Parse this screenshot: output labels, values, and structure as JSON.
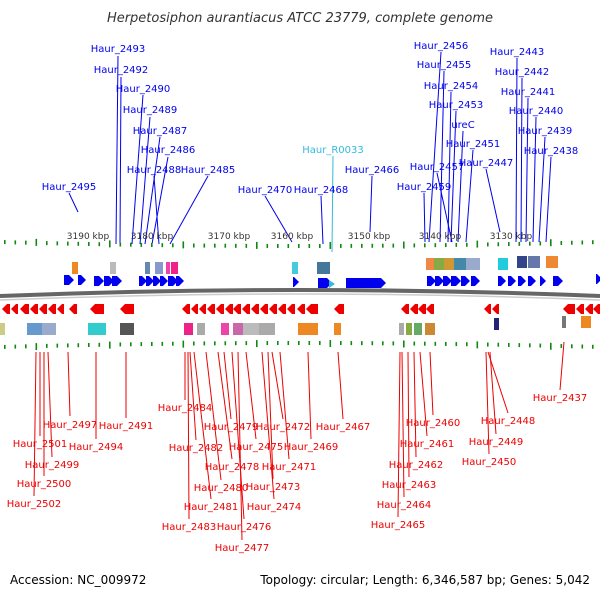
{
  "title": "Herpetosiphon aurantiacus ATCC 23779, complete genome",
  "footer": {
    "accession": "Accession: NC_009972",
    "stats": "Topology: circular; Length: 6,346,587 bp; Genes: 5,042"
  },
  "colors": {
    "forward_gene": "#0000ee",
    "reverse_gene": "#ee0000",
    "rna_gene": "#33bbdd",
    "tick": "#118811",
    "backbone": "#666666"
  },
  "scale": {
    "unit": "kbp",
    "labels": [
      "3190 kbp",
      "3180 kbp",
      "3170 kbp",
      "3160 kbp",
      "3150 kbp",
      "3140 kbp",
      "3130 kbp"
    ]
  },
  "top_labels": [
    "Haur_2493",
    "Haur_2492",
    "Haur_2490",
    "Haur_2489",
    "Haur_2487",
    "Haur_2486",
    "Haur_2488",
    "Haur_2485",
    "Haur_2495",
    "Haur_R0033",
    "Haur_2466",
    "Haur_2470",
    "Haur_2468",
    "Haur_2456",
    "Haur_2455",
    "Haur_2454",
    "Haur_2453",
    "ureC",
    "Haur_2451",
    "Haur_2457",
    "Haur_2459",
    "Haur_2443",
    "Haur_2442",
    "Haur_2441",
    "Haur_2440",
    "Haur_2439",
    "Haur_2438",
    "Haur_2447"
  ],
  "bottom_labels": [
    "Haur_2497",
    "Haur_2501",
    "Haur_2499",
    "Haur_2500",
    "Haur_2502",
    "Haur_2494",
    "Haur_2491",
    "Haur_2484",
    "Haur_2482",
    "Haur_2481",
    "Haur_2483",
    "Haur_2480",
    "Haur_2478",
    "Haur_2479",
    "Haur_2476",
    "Haur_2477",
    "Haur_2475",
    "Haur_2474",
    "Haur_2473",
    "Haur_2472",
    "Haur_2471",
    "Haur_2469",
    "Haur_2467",
    "Haur_2460",
    "Haur_2461",
    "Haur_2462",
    "Haur_2463",
    "Haur_2464",
    "Haur_2465",
    "Haur_2448",
    "Haur_2449",
    "Haur_2450",
    "Haur_2437"
  ]
}
